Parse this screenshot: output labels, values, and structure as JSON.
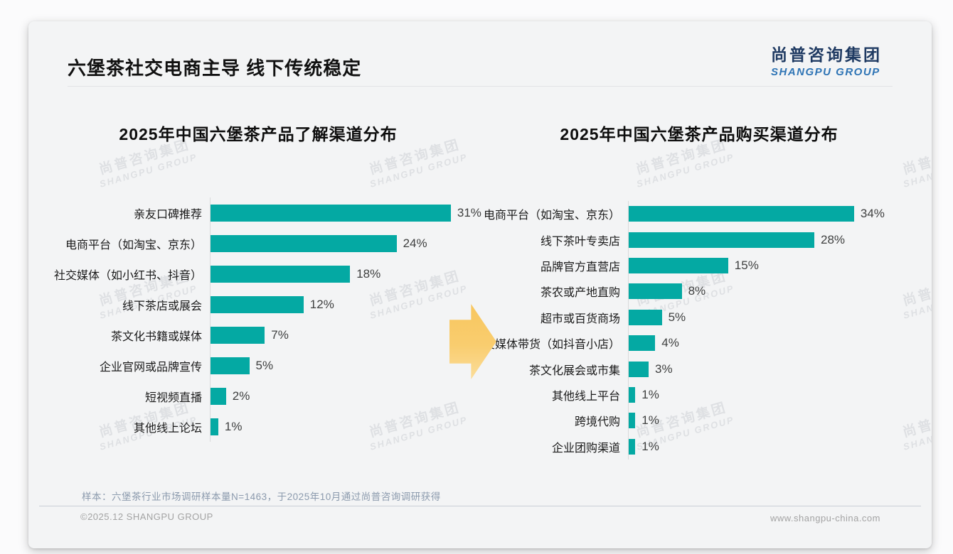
{
  "slide": {
    "title": "六堡茶社交电商主导 线下传统稳定",
    "logo": {
      "cn": "尚普咨询集团",
      "en": "SHANGPU GROUP"
    },
    "watermark": {
      "line1": "尚普咨询集团",
      "line2": "SHANGPU GROUP"
    },
    "footnote": "样本：六堡茶行业市场调研样本量N=1463，于2025年10月通过尚普咨询调研获得",
    "footer_left": "©2025.12 SHANGPU GROUP",
    "footer_right": "www.shangpu-china.com"
  },
  "colors": {
    "bar": "#04a9a3",
    "arrow": "#f8c65e",
    "logo_cn": "#1f3a62",
    "logo_en": "#2e74b5",
    "slide_background": "#f3f4f5"
  },
  "chart_data": [
    {
      "type": "bar",
      "orientation": "horizontal",
      "title": "2025年中国六堡茶产品了解渠道分布",
      "categories": [
        "亲友口碑推荐",
        "电商平台（如淘宝、京东）",
        "社交媒体（如小红书、抖音）",
        "线下茶店或展会",
        "茶文化书籍或媒体",
        "企业官网或品牌宣传",
        "短视频直播",
        "其他线上论坛"
      ],
      "values": [
        31,
        24,
        18,
        12,
        7,
        5,
        2,
        1
      ],
      "unit": "%",
      "value_labels": [
        "31%",
        "24%",
        "18%",
        "12%",
        "7%",
        "5%",
        "2%",
        "1%"
      ],
      "xlim": [
        0,
        34
      ],
      "grid": false,
      "legend": "none",
      "value_label_position": "outside-end"
    },
    {
      "type": "bar",
      "orientation": "horizontal",
      "title": "2025年中国六堡茶产品购买渠道分布",
      "categories": [
        "电商平台（如淘宝、京东）",
        "线下茶叶专卖店",
        "品牌官方直营店",
        "茶农或产地直购",
        "超市或百货商场",
        "社交媒体带货（如抖音小店）",
        "茶文化展会或市集",
        "其他线上平台",
        "跨境代购",
        "企业团购渠道"
      ],
      "values": [
        34,
        28,
        15,
        8,
        5,
        4,
        3,
        1,
        1,
        1
      ],
      "unit": "%",
      "value_labels": [
        "34%",
        "28%",
        "15%",
        "8%",
        "5%",
        "4%",
        "3%",
        "1%",
        "1%",
        "1%"
      ],
      "xlim": [
        0,
        38
      ],
      "grid": false,
      "legend": "none",
      "value_label_position": "outside-end"
    }
  ]
}
